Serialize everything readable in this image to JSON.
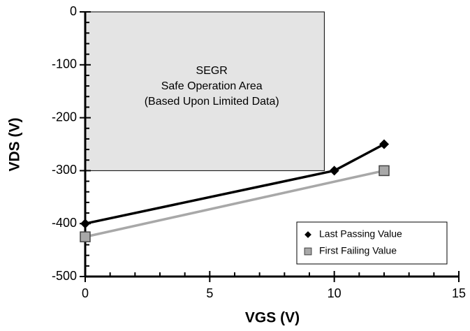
{
  "chart_data": {
    "type": "line",
    "x_label": "VGS (V)",
    "y_label": "VDS (V)",
    "annotation": [
      "SEGR",
      "Safe Operation Area",
      "(Based Upon Limited Data)"
    ],
    "safe_area": {
      "xlim": [
        0,
        9.6
      ],
      "ylim": [
        -300,
        0
      ],
      "color": "#e4e4e4"
    },
    "series": [
      {
        "name": "Last Passing Value",
        "color": "#000000",
        "marker": "diamond",
        "x": [
          0,
          10,
          12
        ],
        "values": [
          -400,
          -300,
          -250
        ]
      },
      {
        "name": "First Failing Value",
        "color": "#a8a8a8",
        "marker": "square",
        "x": [
          0,
          12
        ],
        "values": [
          -425,
          -300
        ]
      }
    ],
    "xlim": [
      0,
      15
    ],
    "xticks": [
      0,
      5,
      10,
      15
    ],
    "ylim": [
      -500,
      0
    ],
    "yticks": [
      0,
      -100,
      -200,
      -300,
      -400,
      -500
    ],
    "legend": "lower right",
    "grid": false
  }
}
